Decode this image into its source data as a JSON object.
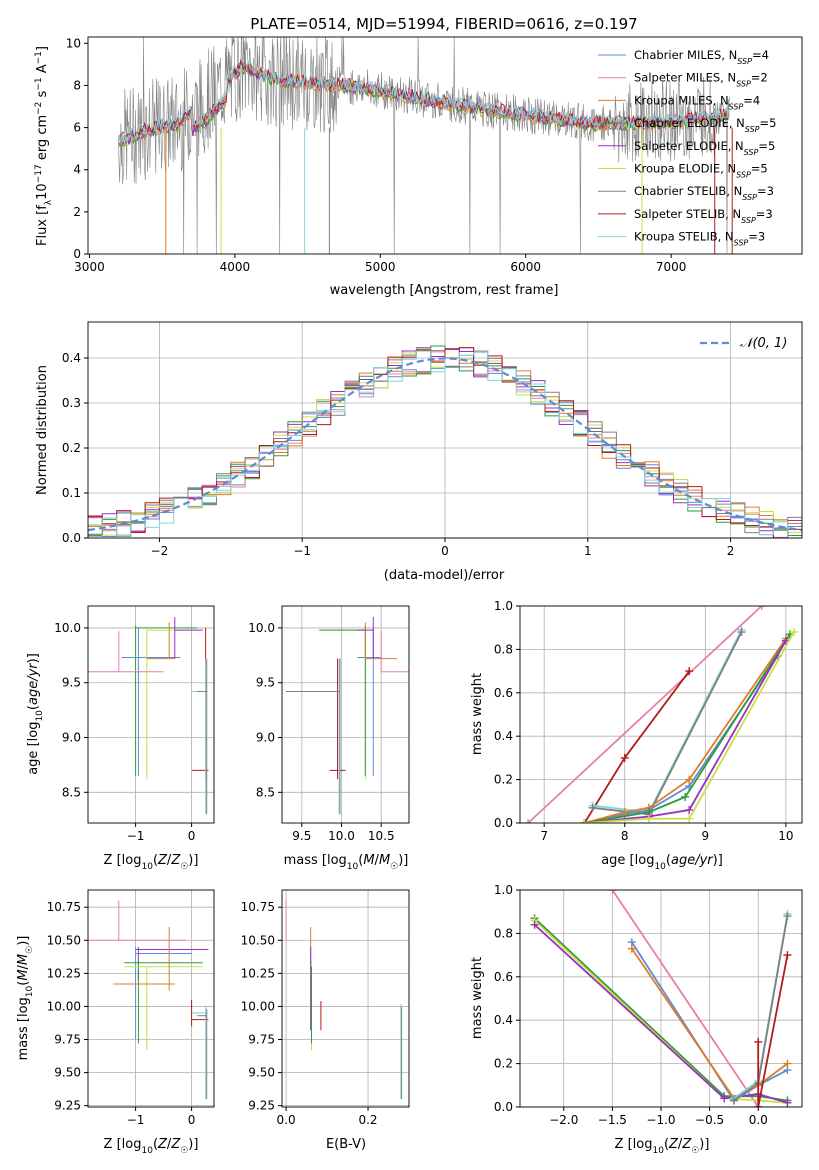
{
  "title": "PLATE=0514, MJD=51994, FIBERID=0616, z=0.197",
  "colors": {
    "chabrier_miles": "#5b8dd6",
    "salpeter_miles": "#e87fa8",
    "kroupa_miles": "#e07b25",
    "chabrier_elodie": "#2e9a3a",
    "salpeter_elodie": "#9b2fc2",
    "kroupa_elodie": "#c6e04a",
    "chabrier_stelib": "#808080",
    "salpeter_stelib": "#b01b1b",
    "kroupa_stelib": "#7fd6dc",
    "gauss": "#5b8dd6"
  },
  "legend": [
    {
      "base": "Chabrier MILES, N",
      "sub": "SSP",
      "tail": "=4",
      "color": "#5b8dd6"
    },
    {
      "base": "Salpeter MILES, N",
      "sub": "SSP",
      "tail": "=2",
      "color": "#e87fa8"
    },
    {
      "base": "Kroupa MILES, N",
      "sub": "SSP",
      "tail": "=4",
      "color": "#e07b25"
    },
    {
      "base": "Chabrier ELODIE, N",
      "sub": "SSP",
      "tail": "=5",
      "color": "#2e9a3a"
    },
    {
      "base": "Salpeter ELODIE, N",
      "sub": "SSP",
      "tail": "=5",
      "color": "#9b2fc2"
    },
    {
      "base": "Kroupa ELODIE, N",
      "sub": "SSP",
      "tail": "=5",
      "color": "#c6e04a"
    },
    {
      "base": "Chabrier STELIB, N",
      "sub": "SSP",
      "tail": "=3",
      "color": "#808080"
    },
    {
      "base": "Salpeter STELIB, N",
      "sub": "SSP",
      "tail": "=3",
      "color": "#b01b1b"
    },
    {
      "base": "Kroupa STELIB, N",
      "sub": "SSP",
      "tail": "=3",
      "color": "#7fd6dc"
    }
  ],
  "chart_data": [
    {
      "type": "line",
      "name": "spectrum",
      "xlabel": "wavelength [Angstrom, rest frame]",
      "ylabel": "Flux [f_λ 10^-17 erg cm^-2 s^-1 A^-1]",
      "xlim": [
        2990,
        7900
      ],
      "ylim": [
        0,
        10.3
      ],
      "xticks": [
        3000,
        4000,
        5000,
        6000,
        7000
      ],
      "yticks": [
        0,
        2,
        4,
        6,
        8,
        10
      ],
      "continuum_x": [
        3200,
        3400,
        3600,
        3800,
        3950,
        4050,
        4300,
        4600,
        4900,
        5200,
        5600,
        6000,
        6500,
        7000,
        7400
      ],
      "continuum_y": [
        5.4,
        5.9,
        6.2,
        7.2,
        8.3,
        8.9,
        8.3,
        8.1,
        7.9,
        7.5,
        7.0,
        6.6,
        6.2,
        6.3,
        6.6
      ]
    },
    {
      "type": "line",
      "name": "residuals",
      "xlabel": "(data-model)/error",
      "ylabel": "Normed distribution",
      "xlim": [
        -2.5,
        2.5
      ],
      "ylim": [
        0,
        0.48
      ],
      "xticks": [
        -2,
        -1,
        0,
        1,
        2
      ],
      "yticks": [
        0.0,
        0.1,
        0.2,
        0.3,
        0.4
      ],
      "legend": "𝒩(0, 1)"
    },
    {
      "type": "scatter",
      "name": "age-vs-Z",
      "xlabel": "Z [log10(Z/Z☉)]",
      "ylabel": "age [log10(age/yr)]",
      "xlim": [
        -1.85,
        0.4
      ],
      "ylim": [
        8.22,
        10.2
      ],
      "xticks": [
        -1,
        0
      ],
      "yticks": [
        8.5,
        9.0,
        9.5,
        10.0
      ]
    },
    {
      "type": "scatter",
      "name": "age-vs-mass",
      "xlabel": "mass [log10(M/M☉)]",
      "ylabel": "",
      "xlim": [
        9.25,
        10.85
      ],
      "ylim": [
        8.22,
        10.2
      ],
      "xticks": [
        9.5,
        10.0,
        10.5
      ],
      "yticks": [
        8.5,
        9.0,
        9.5,
        10.0
      ]
    },
    {
      "type": "line",
      "name": "massweight-vs-age",
      "xlabel": "age [log10(age/yr)]",
      "ylabel": "mass weight",
      "xlim": [
        6.7,
        10.2
      ],
      "ylim": [
        0,
        1.0
      ],
      "xticks": [
        7,
        8,
        9,
        10
      ],
      "yticks": [
        0.0,
        0.2,
        0.4,
        0.6,
        0.8,
        1.0
      ],
      "series": [
        {
          "color": "#e87fa8",
          "x": [
            6.8,
            9.7
          ],
          "y": [
            0,
            1.0
          ]
        },
        {
          "color": "#b01b1b",
          "x": [
            7.5,
            8.0,
            8.8
          ],
          "y": [
            0,
            0.3,
            0.7
          ]
        },
        {
          "color": "#7fd6dc",
          "x": [
            7.6,
            8.3,
            9.45
          ],
          "y": [
            0.08,
            0.05,
            0.89
          ]
        },
        {
          "color": "#808080",
          "x": [
            7.6,
            8.3,
            9.45
          ],
          "y": [
            0.07,
            0.04,
            0.88
          ]
        },
        {
          "color": "#5b8dd6",
          "x": [
            7.5,
            8.0,
            8.3,
            8.8,
            9.9
          ],
          "y": [
            0,
            0.04,
            0.06,
            0.17,
            0.77
          ]
        },
        {
          "color": "#e07b25",
          "x": [
            7.5,
            8.0,
            8.3,
            8.8,
            10.0
          ],
          "y": [
            0,
            0.05,
            0.07,
            0.2,
            0.85
          ]
        },
        {
          "color": "#2e9a3a",
          "x": [
            7.5,
            8.3,
            8.75,
            10.05
          ],
          "y": [
            0,
            0.05,
            0.12,
            0.87
          ]
        },
        {
          "color": "#9b2fc2",
          "x": [
            7.5,
            8.3,
            8.8,
            10.0
          ],
          "y": [
            0,
            0.03,
            0.06,
            0.84
          ]
        },
        {
          "color": "#c6e04a",
          "x": [
            7.5,
            8.3,
            8.8,
            10.1
          ],
          "y": [
            0,
            0.02,
            0.02,
            0.88
          ]
        }
      ]
    },
    {
      "type": "scatter",
      "name": "mass-vs-Z",
      "xlabel": "Z [log10(Z/Z☉)]",
      "ylabel": "mass [log10(M/M☉)]",
      "xlim": [
        -1.85,
        0.4
      ],
      "ylim": [
        9.24,
        10.88
      ],
      "xticks": [
        -1,
        0
      ],
      "yticks": [
        9.25,
        9.5,
        9.75,
        10.0,
        10.25,
        10.5,
        10.75
      ]
    },
    {
      "type": "scatter",
      "name": "mass-vs-ebv",
      "xlabel": "E(B-V)",
      "ylabel": "",
      "xlim": [
        -0.01,
        0.3
      ],
      "ylim": [
        9.24,
        10.88
      ],
      "xticks": [
        0.0,
        0.2
      ],
      "yticks": [
        9.25,
        9.5,
        9.75,
        10.0,
        10.25,
        10.5,
        10.75
      ]
    },
    {
      "type": "line",
      "name": "massweight-vs-Z",
      "xlabel": "Z [log10(Z/Z☉)]",
      "ylabel": "mass weight",
      "xlim": [
        -2.45,
        0.45
      ],
      "ylim": [
        0,
        1.0
      ],
      "xticks": [
        -2.0,
        -1.5,
        -1.0,
        -0.5,
        0.0
      ],
      "yticks": [
        0.0,
        0.2,
        0.4,
        0.6,
        0.8,
        1.0
      ],
      "series": [
        {
          "color": "#e87fa8",
          "x": [
            -1.5,
            0.0
          ],
          "y": [
            1.0,
            0.0
          ]
        },
        {
          "color": "#2e9a3a",
          "x": [
            -2.3,
            -0.35,
            0.0,
            0.3
          ],
          "y": [
            0.87,
            0.05,
            0.05,
            0.03
          ]
        },
        {
          "color": "#c6e04a",
          "x": [
            -2.3,
            -0.35,
            0.0,
            0.3
          ],
          "y": [
            0.86,
            0.04,
            0.03,
            0.02
          ]
        },
        {
          "color": "#9b2fc2",
          "x": [
            -2.3,
            -0.35,
            0.0,
            0.3
          ],
          "y": [
            0.84,
            0.04,
            0.06,
            0.02
          ]
        },
        {
          "color": "#5b8dd6",
          "x": [
            -1.3,
            -0.25,
            0.0,
            0.3
          ],
          "y": [
            0.76,
            0.03,
            0.1,
            0.17
          ]
        },
        {
          "color": "#e07b25",
          "x": [
            -1.3,
            -0.25,
            0.0,
            0.3
          ],
          "y": [
            0.73,
            0.04,
            0.1,
            0.2
          ]
        },
        {
          "color": "#7fd6dc",
          "x": [
            -0.25,
            0.0,
            0.3
          ],
          "y": [
            0.04,
            0.12,
            0.89
          ]
        },
        {
          "color": "#808080",
          "x": [
            -0.25,
            0.0,
            0.3
          ],
          "y": [
            0.03,
            0.11,
            0.88
          ]
        },
        {
          "color": "#b01b1b",
          "x": [
            0.0,
            0.0,
            0.3
          ],
          "y": [
            0.3,
            0.0,
            0.7
          ]
        }
      ]
    }
  ]
}
